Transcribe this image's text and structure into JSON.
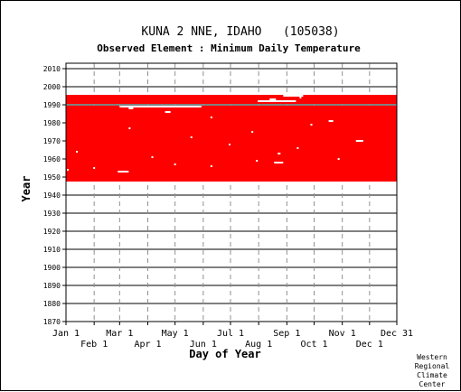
{
  "chart_data": {
    "type": "scatter",
    "title": "KUNA 2 NNE, IDAHO   (105038)",
    "subtitle": "Observed Element : Minimum Daily Temperature",
    "xlabel": "Day of Year",
    "ylabel": "Year",
    "xlim": [
      1,
      365
    ],
    "ylim": [
      1870,
      2012
    ],
    "x_ticks_upper": [
      {
        "label": "Jan 1",
        "day": 1
      },
      {
        "label": "Mar 1",
        "day": 60
      },
      {
        "label": "May 1",
        "day": 121
      },
      {
        "label": "Jul 1",
        "day": 182
      },
      {
        "label": "Sep 1",
        "day": 244
      },
      {
        "label": "Nov 1",
        "day": 305
      },
      {
        "label": "Dec 31",
        "day": 365
      }
    ],
    "x_ticks_lower": [
      {
        "label": "Feb 1",
        "day": 32
      },
      {
        "label": "Apr 1",
        "day": 91
      },
      {
        "label": "Jun 1",
        "day": 152
      },
      {
        "label": "Aug 1",
        "day": 213
      },
      {
        "label": "Oct 1",
        "day": 274
      },
      {
        "label": "Dec 1",
        "day": 335
      }
    ],
    "y_ticks": [
      1870,
      1880,
      1890,
      1900,
      1910,
      1920,
      1930,
      1940,
      1950,
      1960,
      1970,
      1980,
      1990,
      2000,
      2010
    ],
    "grid": true,
    "series": [
      {
        "color": "#ff0000",
        "coverage": [
          {
            "year_start": 1948,
            "year_end": 1989,
            "day_start": 1,
            "day_end": 365
          },
          {
            "year_start": 1991,
            "year_end": 1995,
            "day_start": 1,
            "day_end": 365
          }
        ],
        "missing": [
          {
            "year": 1953,
            "day_start": 58,
            "day_end": 70
          },
          {
            "year": 1954,
            "day_start": 2,
            "day_end": 4
          },
          {
            "year": 1955,
            "day_start": 31,
            "day_end": 32
          },
          {
            "year": 1956,
            "day_start": 160,
            "day_end": 161
          },
          {
            "year": 1957,
            "day_start": 120,
            "day_end": 121
          },
          {
            "year": 1958,
            "day_start": 230,
            "day_end": 240
          },
          {
            "year": 1959,
            "day_start": 210,
            "day_end": 212
          },
          {
            "year": 1960,
            "day_start": 300,
            "day_end": 301
          },
          {
            "year": 1961,
            "day_start": 95,
            "day_end": 96
          },
          {
            "year": 1963,
            "day_start": 234,
            "day_end": 237
          },
          {
            "year": 1964,
            "day_start": 12,
            "day_end": 13
          },
          {
            "year": 1966,
            "day_start": 255,
            "day_end": 256
          },
          {
            "year": 1968,
            "day_start": 180,
            "day_end": 181
          },
          {
            "year": 1970,
            "day_start": 320,
            "day_end": 328
          },
          {
            "year": 1972,
            "day_start": 138,
            "day_end": 139
          },
          {
            "year": 1975,
            "day_start": 205,
            "day_end": 206
          },
          {
            "year": 1977,
            "day_start": 70,
            "day_end": 71
          },
          {
            "year": 1979,
            "day_start": 270,
            "day_end": 271
          },
          {
            "year": 1981,
            "day_start": 290,
            "day_end": 295
          },
          {
            "year": 1983,
            "day_start": 160,
            "day_end": 161
          },
          {
            "year": 1986,
            "day_start": 110,
            "day_end": 116
          },
          {
            "year": 1988,
            "day_start": 70,
            "day_end": 75
          },
          {
            "year": 1989,
            "day_start": 60,
            "day_end": 150
          },
          {
            "year": 1992,
            "day_start": 212,
            "day_end": 254
          },
          {
            "year": 1993,
            "day_start": 225,
            "day_end": 232
          },
          {
            "year": 1994,
            "day_start": 258,
            "day_end": 260
          },
          {
            "year": 1995,
            "day_start": 240,
            "day_end": 262
          }
        ]
      }
    ]
  },
  "credit": [
    "Western",
    "Regional",
    "Climate",
    "Center"
  ]
}
